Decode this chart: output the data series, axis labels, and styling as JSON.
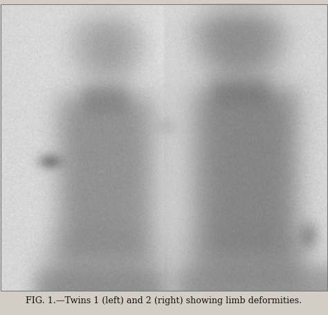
{
  "caption": "FIG. 1.—Twins 1 (left) and 2 (right) showing limb deformities.",
  "caption_fontsize": 9.2,
  "caption_fontfamily": "serif",
  "fig_width": 4.74,
  "fig_height": 4.55,
  "dpi": 100,
  "bg_color_light": 0.86,
  "outer_bg": "#d4cdc5"
}
